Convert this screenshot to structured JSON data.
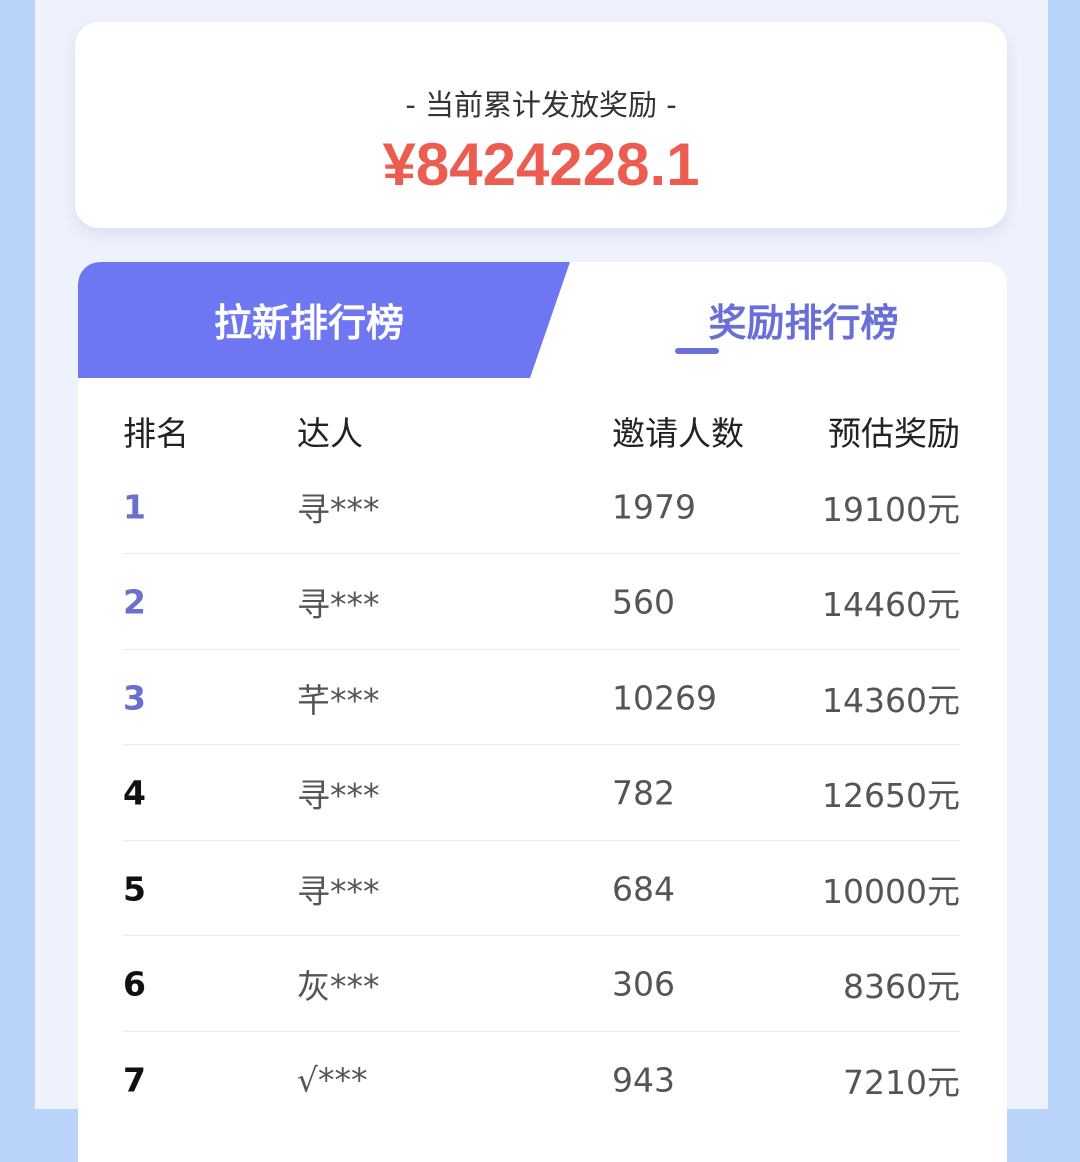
{
  "summary": {
    "label": "- 当前累计发放奖励 -",
    "value": "¥8424228.1"
  },
  "tabs": [
    {
      "label": "拉新排行榜",
      "active": true
    },
    {
      "label": "奖励排行榜",
      "active": false
    }
  ],
  "table": {
    "headers": [
      "排名",
      "达人",
      "邀请人数",
      "预估奖励"
    ],
    "rows": [
      {
        "rank": "1",
        "name": "寻***",
        "invites": "1979",
        "reward": "19100元"
      },
      {
        "rank": "2",
        "name": "寻***",
        "invites": "560",
        "reward": "14460元"
      },
      {
        "rank": "3",
        "name": "芊***",
        "invites": "10269",
        "reward": "14360元"
      },
      {
        "rank": "4",
        "name": "寻***",
        "invites": "782",
        "reward": "12650元"
      },
      {
        "rank": "5",
        "name": "寻***",
        "invites": "684",
        "reward": "10000元"
      },
      {
        "rank": "6",
        "name": "灰***",
        "invites": "306",
        "reward": "8360元"
      },
      {
        "rank": "7",
        "name": "√***",
        "invites": "943",
        "reward": "7210元"
      }
    ]
  },
  "colors": {
    "accent": "#6f76f1",
    "amount": "#ec5c50",
    "top_rank": "#6a6fd0"
  }
}
